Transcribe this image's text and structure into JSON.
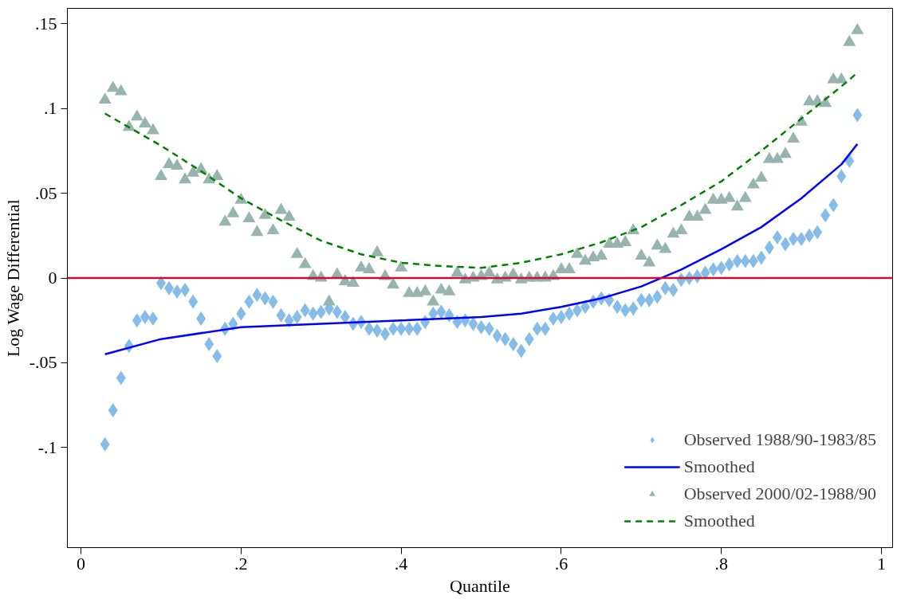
{
  "chart_data": {
    "type": "scatter",
    "xlabel": "Quantile",
    "ylabel": "Log Wage Differential",
    "xlim": [
      -0.017,
      1.014
    ],
    "ylim": [
      -0.159,
      0.159
    ],
    "xticks": [
      0,
      {
        "value": 0.2,
        "label": ".2"
      },
      {
        "value": 0.4,
        "label": ".4"
      },
      {
        "value": 0.6,
        "label": ".6"
      },
      {
        "value": 0.8,
        "label": ".8"
      },
      1
    ],
    "yticks": [
      {
        "value": -0.1,
        "label": "-.1"
      },
      {
        "value": -0.05,
        "label": "-.05"
      },
      0,
      {
        "value": 0.05,
        "label": ".05"
      },
      {
        "value": 0.1,
        "label": ".1"
      },
      {
        "value": 0.15,
        "label": ".15"
      }
    ],
    "grid": false,
    "legend": "bottom right",
    "ref_lines": [
      {
        "axis": "y",
        "value": 0,
        "color": "#c8102e"
      }
    ],
    "series": [
      {
        "name": "Observed 1988/90-1983/85",
        "type": "scatter",
        "marker": "diamond",
        "color": "#85bde8",
        "x": [
          0.03,
          0.04,
          0.05,
          0.06,
          0.07,
          0.08,
          0.09,
          0.1,
          0.11,
          0.12,
          0.13,
          0.14,
          0.15,
          0.16,
          0.17,
          0.18,
          0.19,
          0.2,
          0.21,
          0.22,
          0.23,
          0.24,
          0.25,
          0.26,
          0.27,
          0.28,
          0.29,
          0.3,
          0.31,
          0.32,
          0.33,
          0.34,
          0.35,
          0.36,
          0.37,
          0.38,
          0.39,
          0.4,
          0.41,
          0.42,
          0.43,
          0.44,
          0.45,
          0.46,
          0.47,
          0.48,
          0.49,
          0.5,
          0.51,
          0.52,
          0.53,
          0.54,
          0.55,
          0.56,
          0.57,
          0.58,
          0.59,
          0.6,
          0.61,
          0.62,
          0.63,
          0.64,
          0.65,
          0.66,
          0.67,
          0.68,
          0.69,
          0.7,
          0.71,
          0.72,
          0.73,
          0.74,
          0.75,
          0.76,
          0.77,
          0.78,
          0.79,
          0.8,
          0.81,
          0.82,
          0.83,
          0.84,
          0.85,
          0.86,
          0.87,
          0.88,
          0.89,
          0.9,
          0.91,
          0.92,
          0.93,
          0.94,
          0.95,
          0.96,
          0.97
        ],
        "values": [
          -0.098,
          -0.078,
          -0.059,
          -0.04,
          -0.025,
          -0.023,
          -0.024,
          -0.003,
          -0.006,
          -0.008,
          -0.007,
          -0.014,
          -0.024,
          -0.039,
          -0.046,
          -0.03,
          -0.027,
          -0.021,
          -0.014,
          -0.01,
          -0.012,
          -0.014,
          -0.022,
          -0.025,
          -0.023,
          -0.019,
          -0.021,
          -0.02,
          -0.018,
          -0.02,
          -0.023,
          -0.027,
          -0.026,
          -0.03,
          -0.031,
          -0.033,
          -0.03,
          -0.03,
          -0.03,
          -0.03,
          -0.026,
          -0.021,
          -0.02,
          -0.022,
          -0.026,
          -0.025,
          -0.027,
          -0.029,
          -0.03,
          -0.034,
          -0.036,
          -0.039,
          -0.043,
          -0.036,
          -0.03,
          -0.03,
          -0.024,
          -0.023,
          -0.021,
          -0.019,
          -0.017,
          -0.014,
          -0.012,
          -0.013,
          -0.017,
          -0.019,
          -0.018,
          -0.013,
          -0.013,
          -0.011,
          -0.006,
          -0.007,
          -0.001,
          0.0,
          0.001,
          0.003,
          0.005,
          0.006,
          0.008,
          0.01,
          0.01,
          0.01,
          0.012,
          0.018,
          0.024,
          0.02,
          0.023,
          0.023,
          0.025,
          0.027,
          0.037,
          0.043,
          0.06,
          0.069,
          0.096
        ]
      },
      {
        "name": "Smoothed",
        "type": "line",
        "line_style": "solid",
        "color": "#0000ff",
        "x": [
          0.03,
          0.1,
          0.2,
          0.3,
          0.4,
          0.5,
          0.55,
          0.6,
          0.65,
          0.7,
          0.75,
          0.8,
          0.85,
          0.9,
          0.95,
          0.97
        ],
        "values": [
          -0.045,
          -0.036,
          -0.029,
          -0.027,
          -0.025,
          -0.023,
          -0.021,
          -0.017,
          -0.012,
          -0.005,
          0.005,
          0.017,
          0.03,
          0.047,
          0.067,
          0.079
        ]
      },
      {
        "name": "Observed 2000/02-1988/90",
        "type": "scatter",
        "marker": "triangle",
        "color": "#98b4ae",
        "x": [
          0.03,
          0.04,
          0.05,
          0.06,
          0.07,
          0.08,
          0.09,
          0.1,
          0.11,
          0.12,
          0.13,
          0.14,
          0.15,
          0.16,
          0.17,
          0.18,
          0.19,
          0.2,
          0.21,
          0.22,
          0.23,
          0.24,
          0.25,
          0.26,
          0.27,
          0.28,
          0.29,
          0.3,
          0.31,
          0.32,
          0.33,
          0.34,
          0.35,
          0.36,
          0.37,
          0.38,
          0.39,
          0.4,
          0.41,
          0.42,
          0.43,
          0.44,
          0.45,
          0.46,
          0.47,
          0.48,
          0.49,
          0.5,
          0.51,
          0.52,
          0.53,
          0.54,
          0.55,
          0.56,
          0.57,
          0.58,
          0.59,
          0.6,
          0.61,
          0.62,
          0.63,
          0.64,
          0.65,
          0.66,
          0.67,
          0.68,
          0.69,
          0.7,
          0.71,
          0.72,
          0.73,
          0.74,
          0.75,
          0.76,
          0.77,
          0.78,
          0.79,
          0.8,
          0.81,
          0.82,
          0.83,
          0.84,
          0.85,
          0.86,
          0.87,
          0.88,
          0.89,
          0.9,
          0.91,
          0.92,
          0.93,
          0.94,
          0.95,
          0.96,
          0.97
        ],
        "values": [
          0.105,
          0.112,
          0.11,
          0.089,
          0.095,
          0.091,
          0.087,
          0.06,
          0.067,
          0.066,
          0.058,
          0.062,
          0.064,
          0.058,
          0.06,
          0.033,
          0.038,
          0.046,
          0.035,
          0.027,
          0.037,
          0.028,
          0.04,
          0.036,
          0.014,
          0.008,
          0.001,
          0.0,
          -0.014,
          0.002,
          -0.002,
          -0.003,
          0.006,
          0.005,
          0.015,
          0.001,
          -0.004,
          0.006,
          -0.009,
          -0.009,
          -0.008,
          -0.014,
          -0.007,
          -0.008,
          0.003,
          -0.001,
          0.0,
          0.001,
          0.003,
          -0.001,
          0.0,
          0.002,
          -0.001,
          0.0,
          0.0,
          0.0,
          0.001,
          0.005,
          0.005,
          0.014,
          0.01,
          0.012,
          0.013,
          0.02,
          0.02,
          0.021,
          0.028,
          0.013,
          0.009,
          0.019,
          0.017,
          0.026,
          0.028,
          0.036,
          0.036,
          0.04,
          0.046,
          0.046,
          0.047,
          0.042,
          0.047,
          0.055,
          0.059,
          0.07,
          0.07,
          0.073,
          0.082,
          0.092,
          0.104,
          0.104,
          0.103,
          0.117,
          0.117,
          0.139,
          0.146
        ]
      },
      {
        "name": "Smoothed",
        "type": "line",
        "line_style": "dashed",
        "color": "#008000",
        "x": [
          0.03,
          0.1,
          0.15,
          0.2,
          0.25,
          0.3,
          0.35,
          0.4,
          0.45,
          0.5,
          0.55,
          0.6,
          0.65,
          0.7,
          0.75,
          0.8,
          0.85,
          0.9,
          0.95,
          0.97
        ],
        "values": [
          0.097,
          0.078,
          0.063,
          0.047,
          0.034,
          0.022,
          0.014,
          0.009,
          0.007,
          0.006,
          0.009,
          0.014,
          0.021,
          0.03,
          0.043,
          0.057,
          0.075,
          0.094,
          0.113,
          0.121
        ]
      }
    ]
  }
}
